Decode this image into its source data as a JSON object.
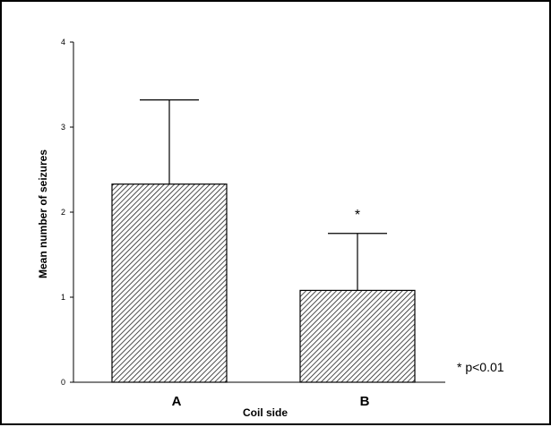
{
  "chart_data": {
    "type": "bar",
    "categories": [
      "A",
      "B"
    ],
    "values": [
      2.33,
      1.08
    ],
    "error_upper": [
      3.32,
      1.75
    ],
    "xlabel": "Coil side",
    "ylabel": "Mean number of seizures",
    "ylim": [
      0,
      4
    ],
    "yticks": [
      "0",
      "1",
      "2",
      "3",
      "4"
    ],
    "significance_marks": [
      "",
      "*"
    ],
    "annotation": "* p<0.01",
    "bar_fill": "hatched",
    "grid": false
  }
}
